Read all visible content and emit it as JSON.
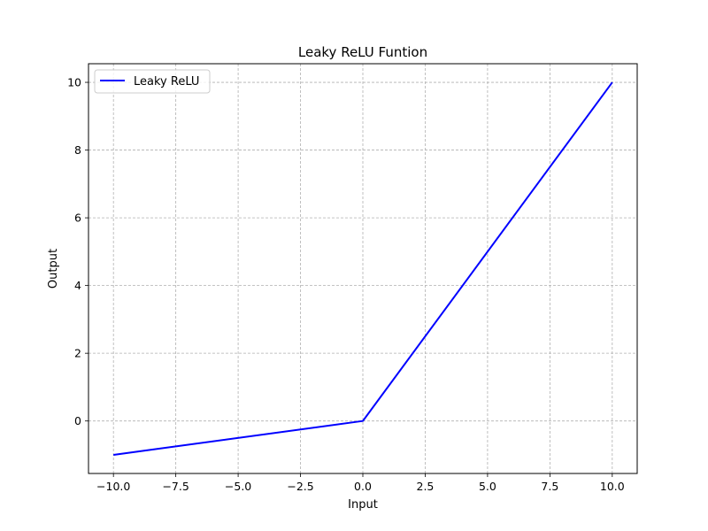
{
  "chart_data": {
    "type": "line",
    "title": "Leaky ReLU Funtion",
    "xlabel": "Input",
    "ylabel": "Output",
    "xlim": [
      -11.0,
      11.0
    ],
    "ylim": [
      -1.55,
      10.55
    ],
    "x_ticks": [
      -10.0,
      -7.5,
      -5.0,
      -2.5,
      0.0,
      2.5,
      5.0,
      7.5,
      10.0
    ],
    "x_tick_labels": [
      "−10.0",
      "−7.5",
      "−5.0",
      "−2.5",
      "0.0",
      "2.5",
      "5.0",
      "7.5",
      "10.0"
    ],
    "y_ticks": [
      0,
      2,
      4,
      6,
      8,
      10
    ],
    "y_tick_labels": [
      "0",
      "2",
      "4",
      "6",
      "8",
      "10"
    ],
    "grid": true,
    "legend_position": "top-left",
    "series": [
      {
        "name": "Leaky ReLU",
        "color": "#0000ff",
        "x": [
          -10.0,
          -0.1,
          0.0,
          0.1,
          10.0
        ],
        "y": [
          -1.0,
          -0.01,
          0.0,
          0.1,
          10.0
        ]
      }
    ]
  }
}
